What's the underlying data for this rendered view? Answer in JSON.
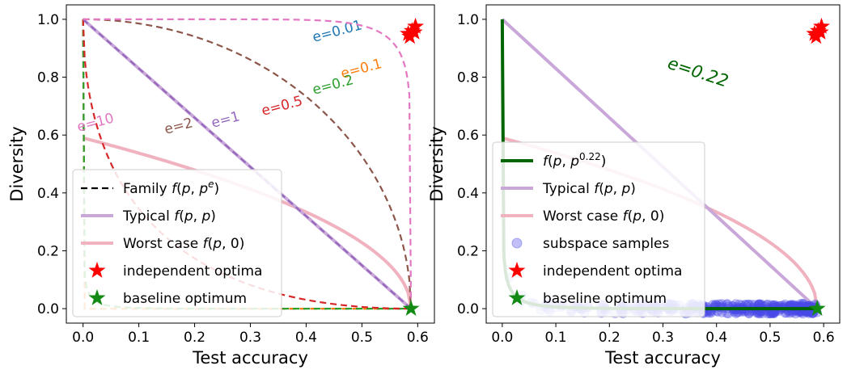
{
  "chart_data": [
    {
      "type": "line",
      "xlabel": "Test accuracy",
      "ylabel": "Diversity",
      "xlim": [
        -0.03,
        0.63
      ],
      "ylim": [
        -0.05,
        1.05
      ],
      "xticks": [
        "0.0",
        "0.1",
        "0.2",
        "0.3",
        "0.4",
        "0.5",
        "0.6"
      ],
      "yticks": [
        "0.0",
        "0.2",
        "0.4",
        "0.6",
        "0.8",
        "1.0"
      ],
      "baseline_accuracy": 0.588,
      "worst_case_diversity_at_zero": 0.59,
      "family_curves": [
        {
          "label": "e=0.01",
          "e": 0.01,
          "color": "#1f77b4"
        },
        {
          "label": "e=0.1",
          "e": 0.1,
          "color": "#ff7f0e"
        },
        {
          "label": "e=0.2",
          "e": 0.2,
          "color": "#2ca02c"
        },
        {
          "label": "e=0.5",
          "e": 0.5,
          "color": "#d62728"
        },
        {
          "label": "e=1",
          "e": 1,
          "color": "#9467bd"
        },
        {
          "label": "e=2",
          "e": 2,
          "color": "#8c564b"
        },
        {
          "label": "e=10",
          "e": 10,
          "color": "#e377c2"
        }
      ],
      "independent_optima": [
        [
          0.583,
          0.95
        ],
        [
          0.59,
          0.96
        ],
        [
          0.596,
          0.975
        ],
        [
          0.586,
          0.94
        ],
        [
          0.594,
          0.955
        ]
      ],
      "baseline_optimum": [
        0.588,
        0.0
      ],
      "legend": {
        "placement": "lower-left",
        "items": [
          {
            "label": "Family f(p, p^e)",
            "kind": "dashed"
          },
          {
            "label": "Typical f(p, p)",
            "kind": "typical"
          },
          {
            "label": "Worst case f(p, 0)",
            "kind": "worst"
          },
          {
            "label": "independent optima",
            "kind": "redstar"
          },
          {
            "label": "baseline optimum",
            "kind": "greenstar"
          }
        ]
      }
    },
    {
      "type": "line",
      "xlabel": "Test accuracy",
      "ylabel": "Diversity",
      "xlim": [
        -0.03,
        0.63
      ],
      "ylim": [
        -0.05,
        1.05
      ],
      "xticks": [
        "0.0",
        "0.1",
        "0.2",
        "0.3",
        "0.4",
        "0.5",
        "0.6"
      ],
      "yticks": [
        "0.0",
        "0.2",
        "0.4",
        "0.6",
        "0.8",
        "1.0"
      ],
      "fit_curve": {
        "label": "e=0.22",
        "e": 0.22,
        "color": "#006400"
      },
      "samples_color": "#4a4ae8",
      "legend": {
        "placement": "lower-left",
        "items": [
          {
            "label": "f(p, p^0.22)",
            "kind": "fit"
          },
          {
            "label": "Typical f(p, p)",
            "kind": "typical"
          },
          {
            "label": "Worst case f(p, 0)",
            "kind": "worst"
          },
          {
            "label": "subspace samples",
            "kind": "dot"
          },
          {
            "label": "independent optima",
            "kind": "redstar"
          },
          {
            "label": "baseline optimum",
            "kind": "greenstar"
          }
        ]
      }
    }
  ]
}
